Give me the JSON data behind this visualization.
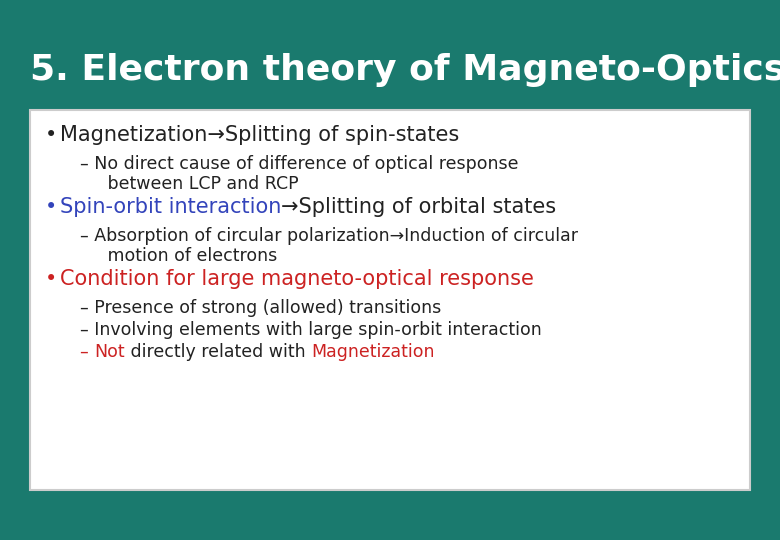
{
  "title": "5. Electron theory of Magneto-Optics",
  "bg_color": "#1a7a6e",
  "box_bg": "#ffffff",
  "box_border": "#cccccc",
  "title_color": "#ffffff",
  "title_fontsize": 26,
  "dark": "#222222",
  "blue": "#3344bb",
  "red": "#cc2222",
  "fs_bullet": 15,
  "fs_sub": 12.5,
  "bullet1_text": "Magnetization→Splitting of spin-states",
  "sub1_line1": "– No direct cause of difference of optical response",
  "sub1_line2": "     between LCP and RCP",
  "bullet2_part1": "Spin-orbit interaction",
  "bullet2_part2": "→Splitting of orbital states",
  "sub2_line1": "– Absorption of circular polarization→Induction of circular",
  "sub2_line2": "     motion of electrons",
  "bullet3_text": "Condition for large magneto-optical response",
  "sub3_line1": "– Presence of strong (allowed) transitions",
  "sub3_line2": "– Involving elements with large spin-orbit interaction",
  "sub3_dash": "– ",
  "sub3_not": "Not",
  "sub3_mid": " directly related with ",
  "sub3_mag": "Magnetization"
}
